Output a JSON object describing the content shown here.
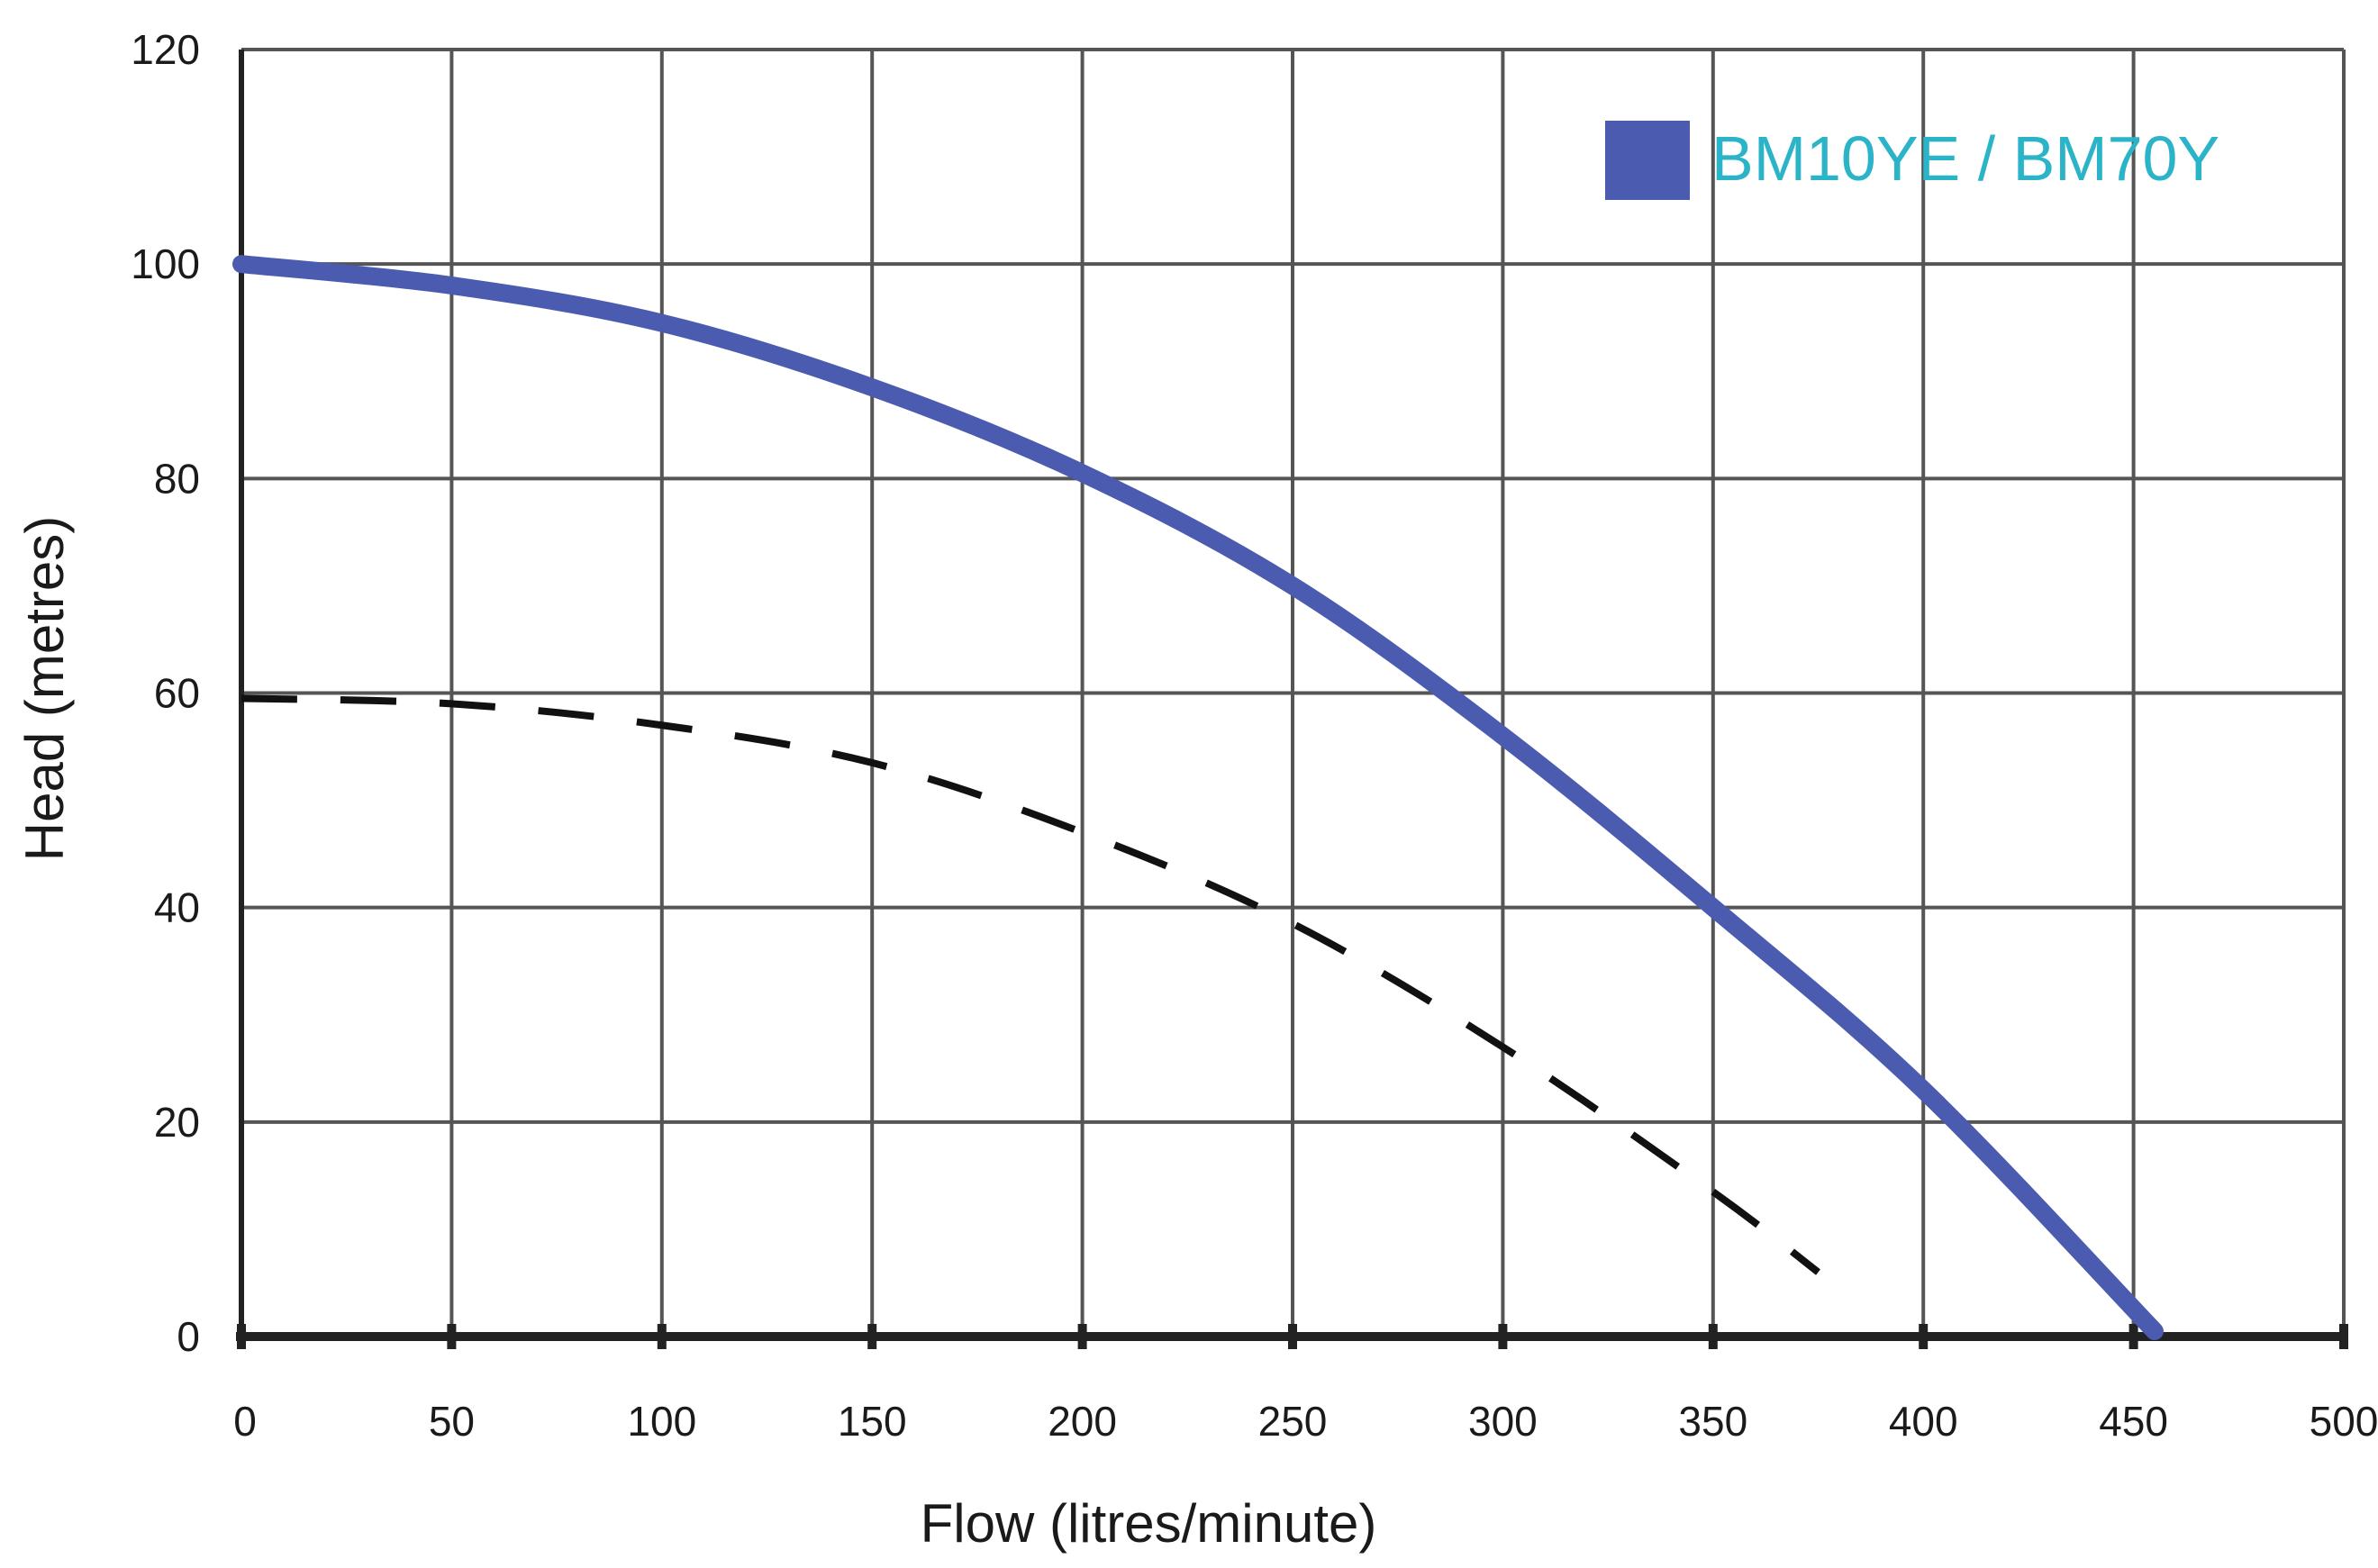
{
  "chart_data": {
    "type": "line",
    "title": "",
    "xlabel": "Flow (litres/minute)",
    "ylabel": "Head (metres)",
    "xlim": [
      0,
      500
    ],
    "ylim": [
      0,
      120
    ],
    "x_ticks": [
      "0",
      "50",
      "100",
      "150",
      "200",
      "250",
      "300",
      "350",
      "400",
      "450",
      "500"
    ],
    "y_ticks": [
      "0",
      "20",
      "40",
      "60",
      "80",
      "100",
      "120"
    ],
    "grid": true,
    "legend_position": "top-right",
    "series": [
      {
        "name": "BM10YE / BM70Y",
        "color": "#4a5bb0",
        "style": "solid",
        "x": [
          0,
          50,
          100,
          150,
          200,
          250,
          300,
          350,
          400,
          455
        ],
        "y": [
          100,
          98,
          94.5,
          88.5,
          80.5,
          70,
          56,
          40,
          23,
          0.5
        ]
      },
      {
        "color": "#111111",
        "style": "dashed",
        "x": [
          0,
          50,
          100,
          150,
          200,
          250,
          300,
          350,
          375
        ],
        "y": [
          59.5,
          59,
          57,
          53.5,
          47,
          38.5,
          27,
          13.5,
          6
        ]
      }
    ]
  }
}
